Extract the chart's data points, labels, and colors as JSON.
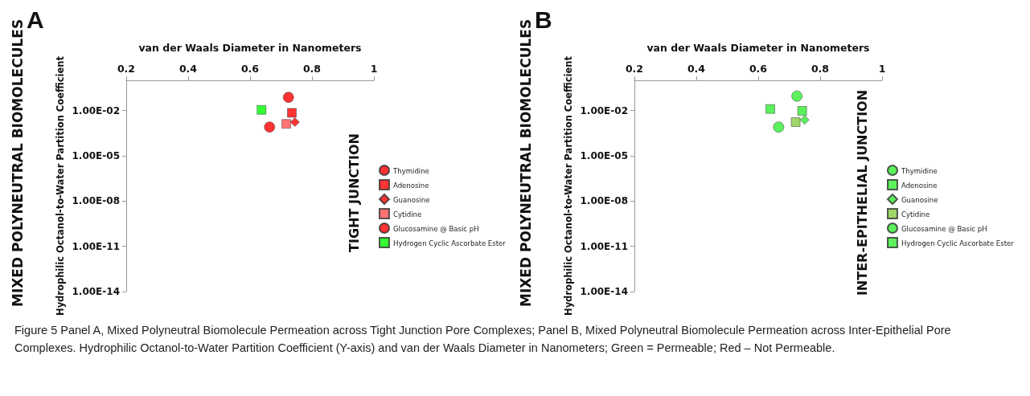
{
  "chart_data": [
    {
      "type": "scatter",
      "title": "A",
      "xlabel": "van der Waals Diameter in Nanometers",
      "ylabel": "Hydrophilic Octanol-to-Water Partition Coefficient",
      "annotations": [
        "MIXED POLYNEUTRAL BIOMOLECULES",
        "TIGHT JUNCTION"
      ],
      "xlim": [
        0.2,
        1
      ],
      "xticks": [
        {
          "value": 0.2,
          "label": "0.2"
        },
        {
          "value": 0.4,
          "label": "0.4"
        },
        {
          "value": 0.6,
          "label": "0.6"
        },
        {
          "value": 0.8,
          "label": "0.8"
        },
        {
          "value": 1,
          "label": "1"
        }
      ],
      "ylim": [
        1e-14,
        1
      ],
      "yticks": [
        {
          "value": 1e-14,
          "label": "1.00E-14"
        },
        {
          "value": 1e-11,
          "label": "1.00E-11"
        },
        {
          "value": 1e-08,
          "label": "1.00E-08"
        },
        {
          "value": 1e-05,
          "label": "1.00E-05"
        },
        {
          "value": 0.01,
          "label": "1.00E-02"
        }
      ],
      "log": "y",
      "grid": false,
      "legend": "right",
      "series": [
        {
          "name": "Thymidine",
          "color": "#ff0000",
          "marker": "circle",
          "x": [
            0.724
          ],
          "values": [
            0.075
          ]
        },
        {
          "name": "Adenosine",
          "color": "#ff0000",
          "marker": "square",
          "x": [
            0.735
          ],
          "values": [
            0.007
          ]
        },
        {
          "name": "Guanosine",
          "color": "#ff0000",
          "marker": "diamond",
          "x": [
            0.745
          ],
          "values": [
            0.0017
          ]
        },
        {
          "name": "Cytidine",
          "color": "#ff5050",
          "marker": "square",
          "x": [
            0.717
          ],
          "values": [
            0.0013
          ]
        },
        {
          "name": "Glucosamine @ Basic pH",
          "color": "#ff0000",
          "marker": "circle",
          "x": [
            0.663
          ],
          "values": [
            0.0008
          ]
        },
        {
          "name": "Hydrogen Cyclic Ascorbate Ester",
          "color": "#00ff00",
          "marker": "square",
          "x": [
            0.637
          ],
          "values": [
            0.011
          ]
        }
      ]
    },
    {
      "type": "scatter",
      "title": "B",
      "xlabel": "van der Waals Diameter in Nanometers",
      "ylabel": "Hydrophilic Octanol-to-Water Partition Coefficient",
      "annotations": [
        "MIXED POLYNEUTRAL BIOMOLECULES",
        "INTER-EPITHELIAL JUNCTION",
        "Figure 5 Panel A, Mixed Polyneutral Biomolecule Permeation across Tight Junction Pore Complexes; Panel B, Mixed Polyneutral Biomolecule Permeation across Inter-Epithelial Pore Complexes. Hydrophilic Octanol-to-Water Partition Coefficient (Y-axis) and van der Waals Diameter in Nanometers; Green = Permeable; Red – Not Permeable."
      ],
      "xlim": [
        0.2,
        1
      ],
      "xticks": [
        {
          "value": 0.2,
          "label": "0.2"
        },
        {
          "value": 0.4,
          "label": "0.4"
        },
        {
          "value": 0.6,
          "label": "0.6"
        },
        {
          "value": 0.8,
          "label": "0.8"
        },
        {
          "value": 1,
          "label": "1"
        }
      ],
      "ylim": [
        1e-14,
        1
      ],
      "yticks": [
        {
          "value": 1e-14,
          "label": "1.00E-14"
        },
        {
          "value": 1e-11,
          "label": "1.00E-11"
        },
        {
          "value": 1e-08,
          "label": "1.00E-08"
        },
        {
          "value": 1e-05,
          "label": "1.00E-05"
        },
        {
          "value": 0.01,
          "label": "1.00E-02"
        }
      ],
      "log": "y",
      "grid": false,
      "legend": "right",
      "series": [
        {
          "name": "Thymidine",
          "color": "#33ee33",
          "marker": "circle",
          "x": [
            0.725
          ],
          "values": [
            0.09
          ]
        },
        {
          "name": "Adenosine",
          "color": "#33ee33",
          "marker": "square",
          "x": [
            0.742
          ],
          "values": [
            0.0095
          ]
        },
        {
          "name": "Guanosine",
          "color": "#33ee33",
          "marker": "diamond",
          "x": [
            0.75
          ],
          "values": [
            0.0024
          ]
        },
        {
          "name": "Cytidine",
          "color": "#88cc44",
          "marker": "square",
          "x": [
            0.721
          ],
          "values": [
            0.0017
          ]
        },
        {
          "name": "Glucosamine @ Basic pH",
          "color": "#33ee33",
          "marker": "circle",
          "x": [
            0.666
          ],
          "values": [
            0.0008
          ]
        },
        {
          "name": "Hydrogen Cyclic Ascorbate Ester",
          "color": "#33ee33",
          "marker": "square",
          "x": [
            0.639
          ],
          "values": [
            0.0126
          ]
        }
      ]
    }
  ]
}
